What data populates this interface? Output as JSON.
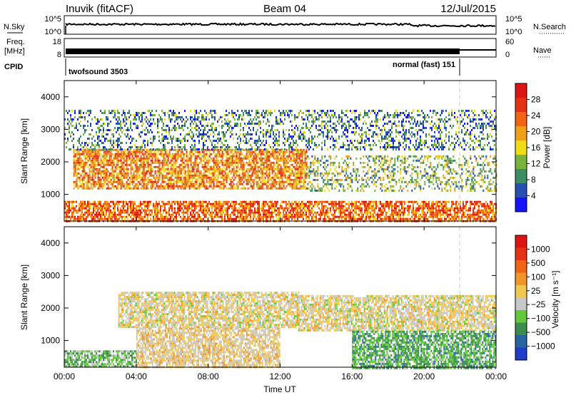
{
  "header": {
    "station": "Inuvik (fitACF)",
    "beam": "Beam 04",
    "date": "12/Jul/2015"
  },
  "params": {
    "nsky_label": "N.Sky",
    "nsky_ticks": [
      "10^5",
      "10^0"
    ],
    "nsearch_label": "N.Search",
    "nsearch_ticks": [
      "10^5",
      "10^0"
    ],
    "freq_label_1": "Freq.",
    "freq_label_2": "[MHz]",
    "freq_ticks": [
      "18",
      "8"
    ],
    "nave_label": "Nave",
    "nave_ticks": [
      "60",
      "0"
    ],
    "cpid_label": "CPID",
    "cpid_segments": [
      {
        "name": "twofsound",
        "id": "3503",
        "text": "twofsound 3503",
        "start_hour": 0,
        "end_hour": 22.0
      },
      {
        "name": "normal (fast)",
        "id": "151",
        "text": "normal (fast) 151",
        "start_hour": 22.0,
        "end_hour": 24.0
      }
    ]
  },
  "axes": {
    "ylabel": "Slant Range [km]",
    "yticks": [
      "1000",
      "2000",
      "3000",
      "4000"
    ],
    "xticks": [
      "00:00",
      "04:00",
      "08:00",
      "12:00",
      "16:00",
      "20:00",
      "00:00"
    ],
    "xlabel": "Time UT"
  },
  "power_scale": {
    "label": "Power [dB]",
    "ticks": [
      "4",
      "8",
      "12",
      "16",
      "20",
      "24",
      "28"
    ],
    "colors": [
      "#1414ff",
      "#2850b4",
      "#3c8c64",
      "#78b43c",
      "#f0dc14",
      "#f0a014",
      "#f06414",
      "#e63214",
      "#dc1414"
    ]
  },
  "velocity_scale": {
    "label": "Velocity [m s⁻¹]",
    "ticks": [
      "1000",
      "500",
      "100",
      "25",
      "−25",
      "−100",
      "−500",
      "−1000"
    ],
    "colors": [
      "#1e3cc8",
      "#2864a0",
      "#3c8c50",
      "#64c83c",
      "#c8c8c8",
      "#f0c850",
      "#f09628",
      "#f06414",
      "#e63214",
      "#dc1414"
    ]
  },
  "chart_data": [
    {
      "type": "heatmap",
      "name": "power",
      "title": "Inuvik (fitACF) Beam 04 12/Jul/2015",
      "xlabel": "Time UT",
      "ylabel": "Slant Range [km]",
      "xlim_hours": [
        0,
        24
      ],
      "ylim_km": [
        180,
        4500
      ],
      "colorbar": "Power [dB]",
      "clim": [
        0,
        30
      ],
      "echo_bands": [
        {
          "start_hour": 0.0,
          "end_hour": 24.0,
          "range_km": [
            180,
            800
          ],
          "typical_value": 22
        },
        {
          "start_hour": 0.5,
          "end_hour": 13.5,
          "range_km": [
            1200,
            2400
          ],
          "typical_value": 20
        },
        {
          "start_hour": 13.5,
          "end_hour": 24.0,
          "range_km": [
            1100,
            2200
          ],
          "typical_value": 12
        },
        {
          "start_hour": 0.0,
          "end_hour": 24.0,
          "range_km": [
            2400,
            3600
          ],
          "typical_value": 8
        }
      ]
    },
    {
      "type": "heatmap",
      "name": "velocity",
      "xlabel": "Time UT",
      "ylabel": "Slant Range [km]",
      "xlim_hours": [
        0,
        24
      ],
      "ylim_km": [
        180,
        4500
      ],
      "colorbar": "Velocity [m s⁻¹]",
      "clim": [
        -1000,
        1000
      ],
      "echo_bands": [
        {
          "start_hour": 0.0,
          "end_hour": 4.0,
          "range_km": [
            180,
            700
          ],
          "typical_value": -300
        },
        {
          "start_hour": 4.0,
          "end_hour": 12.0,
          "range_km": [
            180,
            1400
          ],
          "typical_value": 50
        },
        {
          "start_hour": 3.0,
          "end_hour": 13.0,
          "range_km": [
            1400,
            2500
          ],
          "typical_value": 0
        },
        {
          "start_hour": 13.0,
          "end_hour": 24.0,
          "range_km": [
            1300,
            2400
          ],
          "typical_value": 0
        },
        {
          "start_hour": 16.0,
          "end_hour": 24.0,
          "range_km": [
            180,
            1300
          ],
          "typical_value": -400
        }
      ]
    }
  ]
}
